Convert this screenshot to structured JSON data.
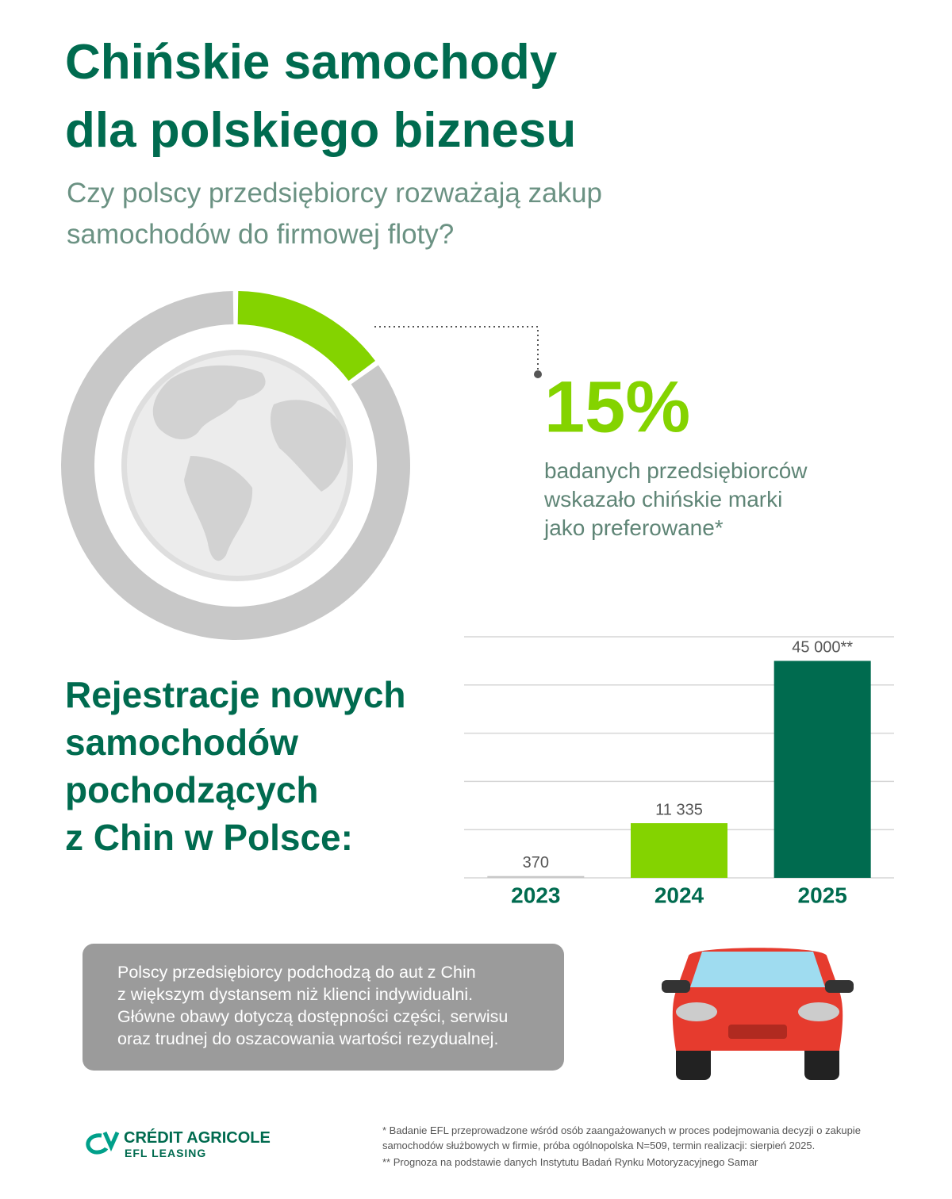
{
  "header": {
    "title": "Chińskie samochody\ndla polskiego biznesu",
    "subtitle": "Czy polscy przedsiębiorcy rozważają zakup\nsamochodów do firmowej floty?"
  },
  "chart_data": [
    {
      "type": "donut",
      "values": [
        15,
        85
      ],
      "value_labels": [
        "15%",
        null
      ],
      "colors": [
        "#84d300",
        "#c8c8c8"
      ],
      "annotation": "badanych przedsiębiorców\nwskazało chińskie marki\njako preferowane*"
    },
    {
      "type": "bar",
      "title": "Rejestracje nowych\nsamochodów\npochodzących\nz Chin w Polsce:",
      "categories": [
        "2023",
        "2024",
        "2025"
      ],
      "values": [
        370,
        11335,
        45000
      ],
      "value_labels": [
        "370",
        "11 335",
        "45 000**"
      ],
      "colors": [
        "#c8c8c8",
        "#84d300",
        "#006b4f"
      ],
      "ylim": [
        0,
        50000
      ],
      "yticks": [
        0,
        10000,
        20000,
        30000,
        40000,
        50000
      ],
      "grid": true
    }
  ],
  "note": "Polscy przedsiębiorcy podchodzą do aut z Chin\nz większym dystansem niż klienci indywidualni.\nGłówne obawy dotyczą dostępności części, serwisu\noraz trudnej do oszacowania wartości rezydualnej.",
  "logo": {
    "name": "CRÉDIT AGRICOLE",
    "sub": "EFL LEASING"
  },
  "footnotes": [
    "*  Badanie EFL przeprowadzone wśród osób zaangażowanych w proces podejmowania decyzji o zakupie\n    samochodów służbowych w firmie, próba ogólnopolska N=509, termin realizacji: sierpień 2025.",
    "**  Prognoza na podstawie danych Instytutu Badań Rynku Motoryzacyjnego Samar"
  ]
}
